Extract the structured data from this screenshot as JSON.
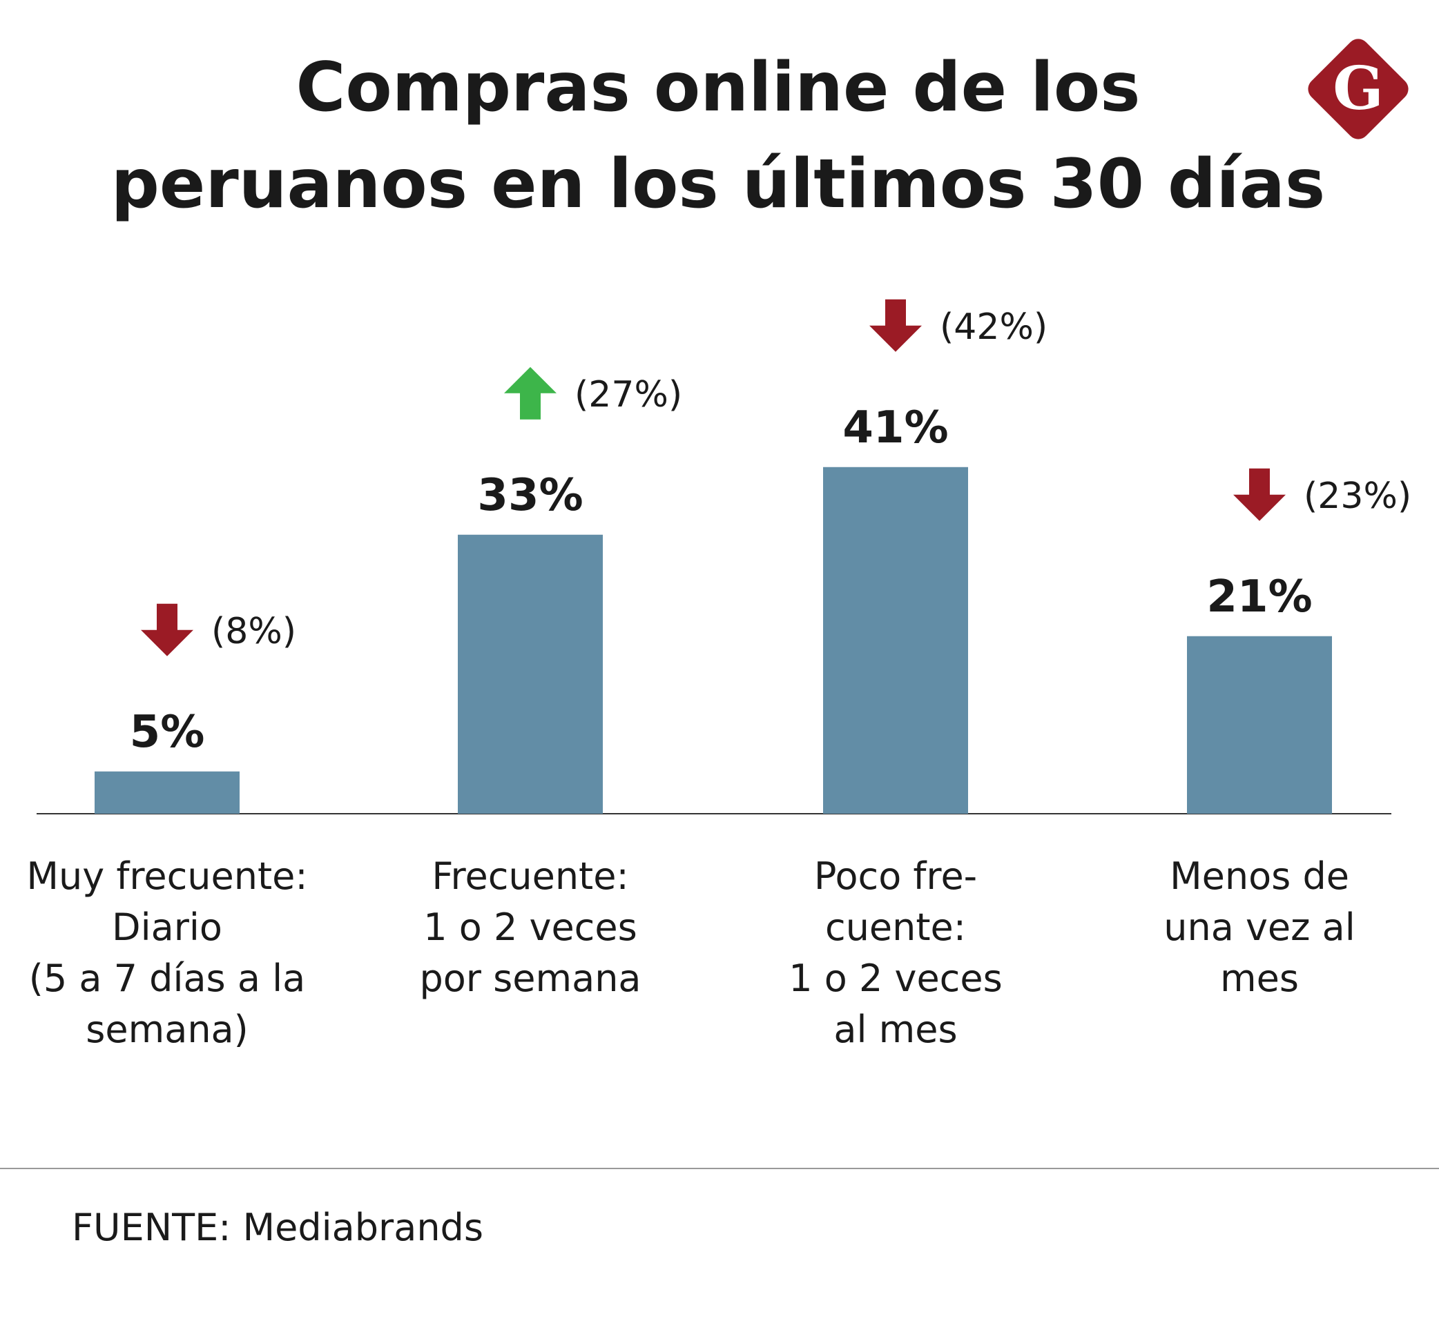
{
  "chart_data": {
    "type": "bar",
    "title": "Compras online de los\nperuanos en los últimos 30 días",
    "logo": "G",
    "categories": [
      "Muy frecuente:\nDiario\n(5 a 7 días a la\nsemana)",
      "Frecuente:\n1 o 2 veces\npor semana",
      "Poco fre-\ncuente:\n1 o 2 veces\nal mes",
      "Menos de\nuna vez al\nmes"
    ],
    "values": [
      5,
      33,
      41,
      21
    ],
    "value_labels": [
      "5%",
      "33%",
      "41%",
      "21%"
    ],
    "previous": [
      8,
      27,
      42,
      23
    ],
    "previous_labels": [
      "(8%)",
      "(27%)",
      "(42%)",
      "(23%)"
    ],
    "trend": [
      "down",
      "up",
      "down",
      "down"
    ],
    "color": "#628da6",
    "up_color": "#3db54a",
    "down_color": "#9b1b25",
    "source": "FUENTE: Mediabrands"
  }
}
